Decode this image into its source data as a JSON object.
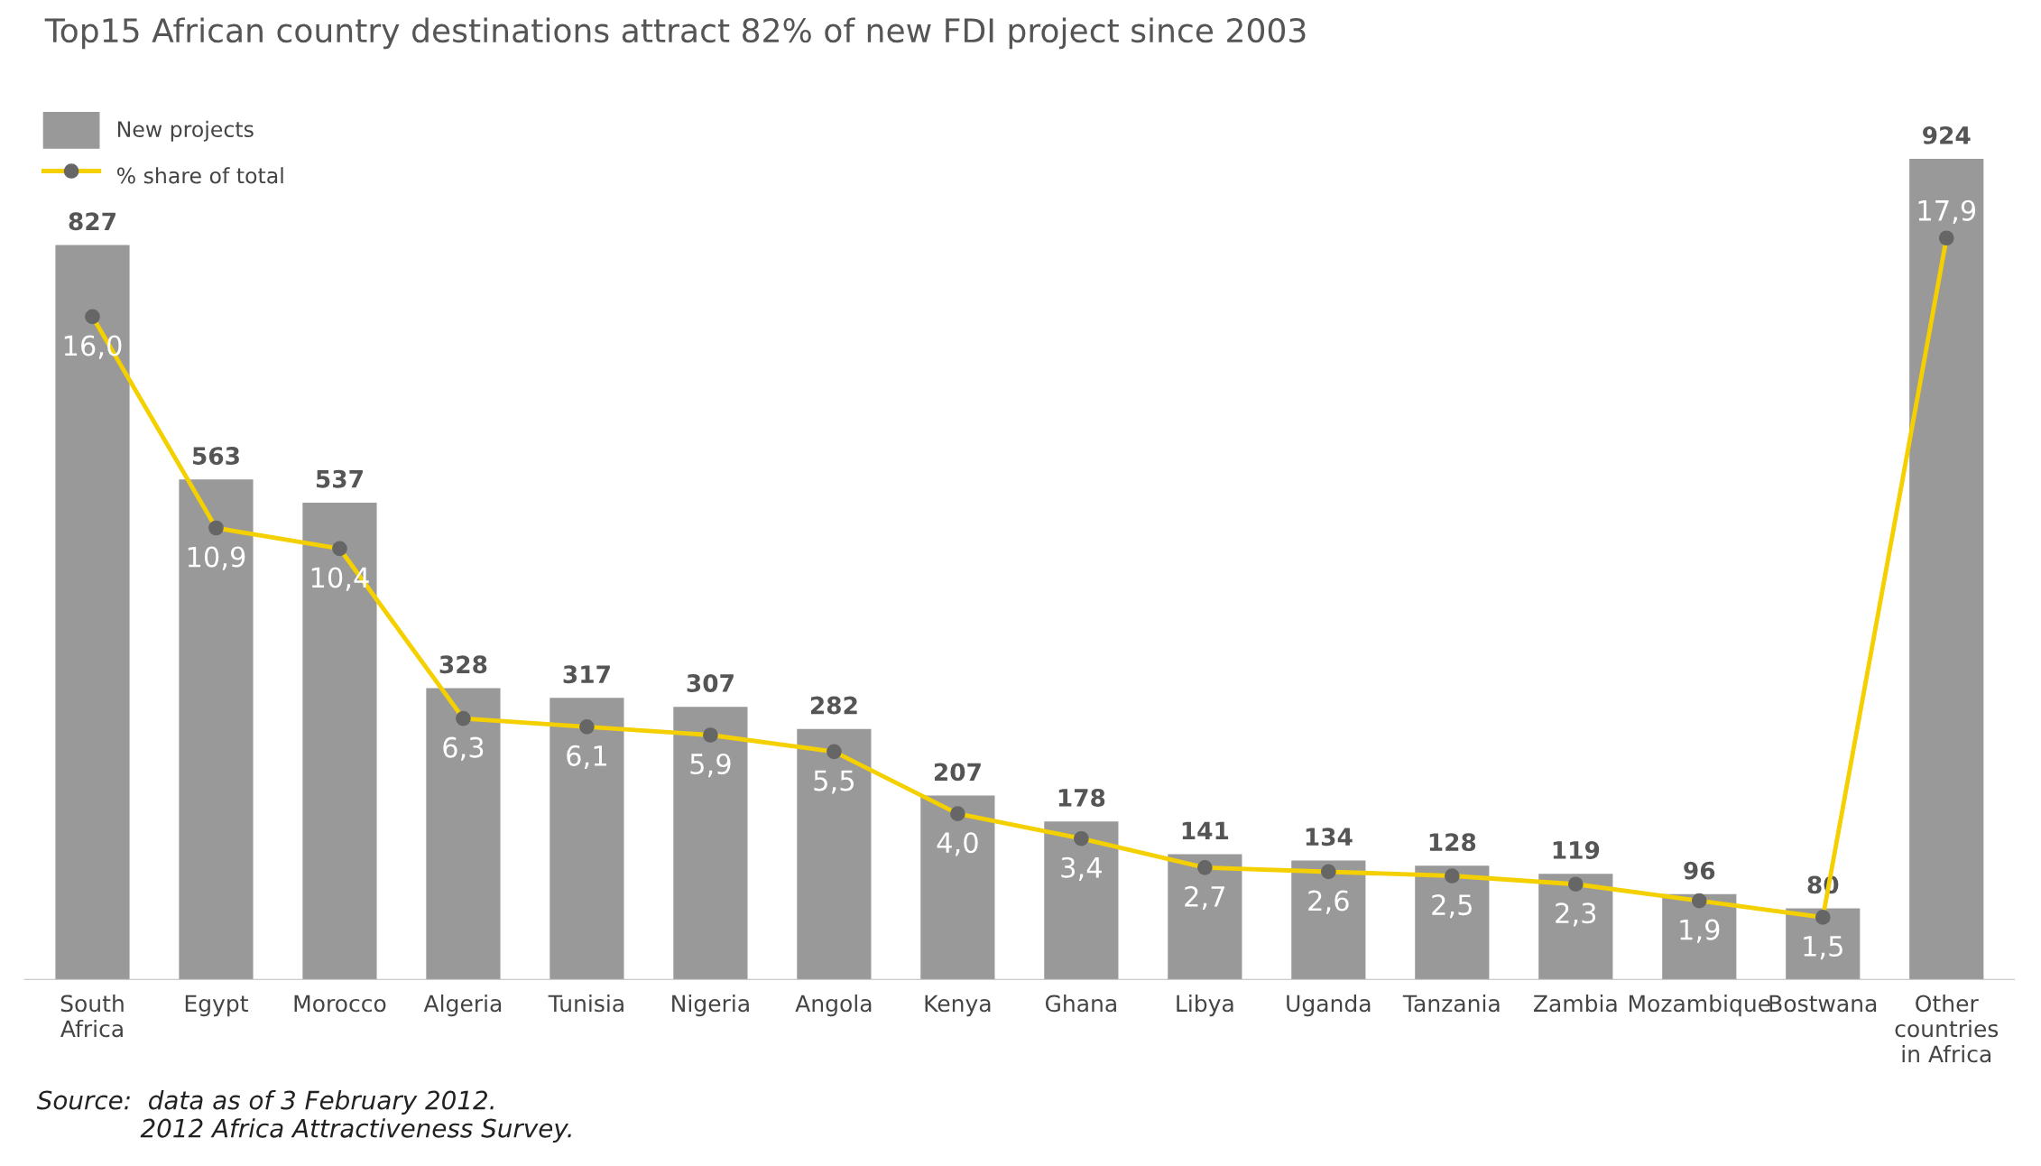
{
  "chart_data": {
    "type": "bar",
    "title": "Top15 African country destinations attract 82% of new FDI project since 2003",
    "categories": [
      "South\nAfrica",
      "Egypt",
      "Morocco",
      "Algeria",
      "Tunisia",
      "Nigeria",
      "Angola",
      "Kenya",
      "Ghana",
      "Libya",
      "Uganda",
      "Tanzania",
      "Zambia",
      "Mozambique",
      "Bostwana",
      "Other\ncountries\nin Africa"
    ],
    "series": [
      {
        "name": "New projects",
        "color": "#999999",
        "values": [
          827,
          563,
          537,
          328,
          317,
          307,
          282,
          207,
          178,
          141,
          134,
          128,
          119,
          96,
          80,
          924
        ]
      },
      {
        "name": "% share of total",
        "type": "line",
        "axis": "y2",
        "color": "#f5d000",
        "values": [
          16.0,
          10.9,
          10.4,
          6.3,
          6.1,
          5.9,
          5.5,
          4.0,
          3.4,
          2.7,
          2.6,
          2.5,
          2.3,
          1.9,
          1.5,
          17.9
        ],
        "value_labels": [
          "16,0",
          "10,9",
          "10,4",
          "6,3",
          "6,1",
          "5,9",
          "5,5",
          "4,0",
          "3,4",
          "2,7",
          "2,6",
          "2,5",
          "2,3",
          "1,9",
          "1,5",
          "17,9"
        ]
      }
    ],
    "data_labels": true,
    "marker": "circle",
    "legend": "top left",
    "grid": false,
    "annotations": [
      "Source:  data as of 3 February 2012.\n             2012 Africa Attractiveness Survey."
    ]
  }
}
